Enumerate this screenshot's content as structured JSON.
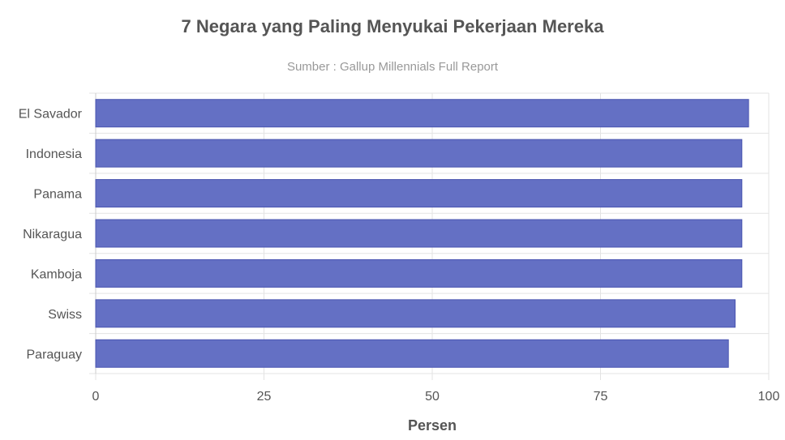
{
  "chart_data": {
    "type": "bar",
    "orientation": "horizontal",
    "title": "7 Negara yang Paling Menyukai Pekerjaan Mereka",
    "subtitle": "Sumber : Gallup Millennials Full Report",
    "xlabel": "Persen",
    "ylabel": "",
    "categories": [
      "El Savador",
      "Indonesia",
      "Panama",
      "Nikaragua",
      "Kamboja",
      "Swiss",
      "Paraguay"
    ],
    "values": [
      97,
      96,
      96,
      96,
      96,
      95,
      94
    ],
    "xlim": [
      0,
      100
    ],
    "xticks": [
      0,
      25,
      50,
      75,
      100
    ],
    "grid": true,
    "legend": "none",
    "bar_color": "#6470c4"
  }
}
